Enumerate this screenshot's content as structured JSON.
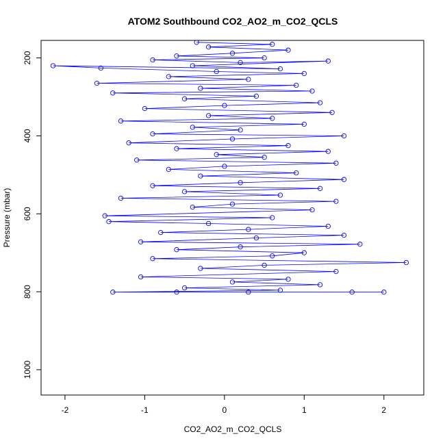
{
  "chart_data": {
    "type": "line",
    "title": "ATOM2 Southbound CO2_AO2_m_CO2_QCLS",
    "xlabel": "CO2_AO2_m_CO2_QCLS",
    "ylabel": "Pressure (mbar)",
    "xlim": [
      -2.3,
      2.5
    ],
    "ylim": [
      1065,
      155
    ],
    "y_reversed": true,
    "x_ticks": [
      -2,
      -1,
      0,
      1,
      2
    ],
    "x_tick_labels": [
      "-2",
      "-1",
      "0",
      "1",
      "2"
    ],
    "y_ticks": [
      200,
      400,
      600,
      800,
      1000
    ],
    "y_tick_labels": [
      "200",
      "400",
      "600",
      "800",
      "1000"
    ],
    "grid": false,
    "legend": "none",
    "markers": "open-circle",
    "color": "#0000ff",
    "series": [
      {
        "values_xy": [
          [
            -0.35,
            160
          ],
          [
            0.6,
            165
          ],
          [
            -0.2,
            172
          ],
          [
            0.8,
            180
          ],
          [
            0.1,
            188
          ],
          [
            -0.6,
            195
          ],
          [
            0.5,
            200
          ],
          [
            -0.9,
            205
          ],
          [
            0.2,
            212
          ],
          [
            1.3,
            208
          ],
          [
            -0.4,
            220
          ],
          [
            0.7,
            228
          ],
          [
            -2.15,
            220
          ],
          [
            -1.55,
            226
          ],
          [
            -0.1,
            235
          ],
          [
            1.0,
            240
          ],
          [
            -0.7,
            248
          ],
          [
            0.3,
            255
          ],
          [
            -1.6,
            265
          ],
          [
            0.9,
            270
          ],
          [
            -0.3,
            278
          ],
          [
            1.1,
            285
          ],
          [
            -1.4,
            290
          ],
          [
            0.4,
            298
          ],
          [
            -0.5,
            305
          ],
          [
            1.2,
            315
          ],
          [
            0.0,
            322
          ],
          [
            -1.0,
            330
          ],
          [
            1.35,
            340
          ],
          [
            -0.2,
            348
          ],
          [
            0.6,
            355
          ],
          [
            -1.3,
            362
          ],
          [
            1.0,
            370
          ],
          [
            -0.4,
            378
          ],
          [
            0.2,
            385
          ],
          [
            -0.9,
            395
          ],
          [
            1.5,
            400
          ],
          [
            0.1,
            408
          ],
          [
            -1.2,
            418
          ],
          [
            0.8,
            425
          ],
          [
            -0.6,
            433
          ],
          [
            1.3,
            440
          ],
          [
            -0.1,
            448
          ],
          [
            0.5,
            455
          ],
          [
            -1.1,
            462
          ],
          [
            1.4,
            470
          ],
          [
            0.0,
            478
          ],
          [
            -0.7,
            486
          ],
          [
            0.9,
            495
          ],
          [
            -0.3,
            503
          ],
          [
            1.5,
            512
          ],
          [
            0.2,
            520
          ],
          [
            -0.9,
            528
          ],
          [
            1.2,
            535
          ],
          [
            -0.5,
            543
          ],
          [
            0.7,
            552
          ],
          [
            -1.3,
            560
          ],
          [
            1.4,
            568
          ],
          [
            0.1,
            575
          ],
          [
            -0.4,
            583
          ],
          [
            1.1,
            590
          ],
          [
            -1.5,
            605
          ],
          [
            0.6,
            610
          ],
          [
            -1.45,
            620
          ],
          [
            -0.2,
            625
          ],
          [
            1.3,
            632
          ],
          [
            0.3,
            640
          ],
          [
            -0.8,
            648
          ],
          [
            1.5,
            655
          ],
          [
            0.4,
            662
          ],
          [
            -1.05,
            672
          ],
          [
            1.7,
            678
          ],
          [
            0.2,
            685
          ],
          [
            -0.6,
            692
          ],
          [
            1.0,
            700
          ],
          [
            0.6,
            708
          ],
          [
            -0.9,
            715
          ],
          [
            2.28,
            725
          ],
          [
            0.5,
            732
          ],
          [
            -0.3,
            740
          ],
          [
            1.4,
            748
          ],
          [
            -1.05,
            762
          ],
          [
            0.8,
            768
          ],
          [
            0.1,
            775
          ],
          [
            1.2,
            782
          ],
          [
            -0.5,
            790
          ],
          [
            0.7,
            796
          ],
          [
            -1.4,
            801
          ],
          [
            2.0,
            801
          ],
          [
            -0.6,
            801
          ],
          [
            1.6,
            801
          ],
          [
            0.3,
            801
          ]
        ]
      }
    ]
  }
}
